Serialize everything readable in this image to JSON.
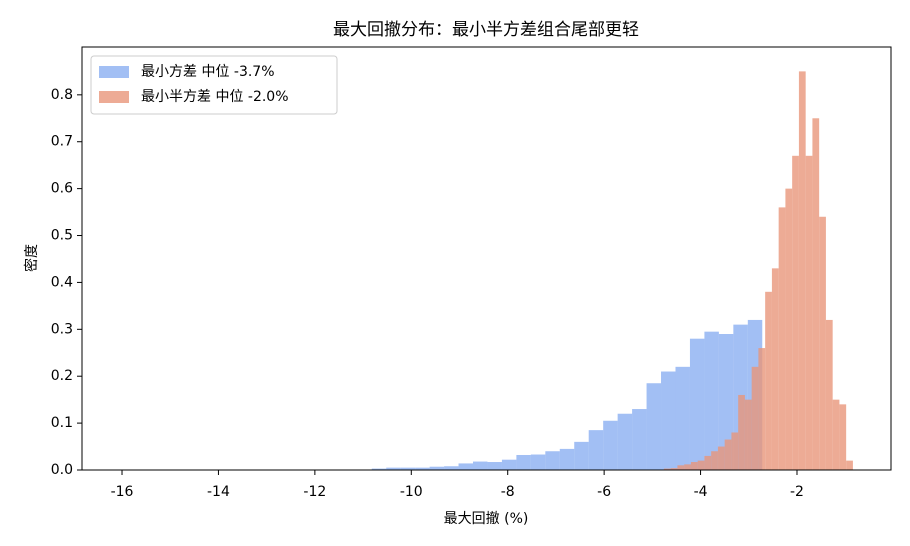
{
  "chart_data": {
    "type": "histogram",
    "title": "最大回撤分布：最小半方差组合尾部更轻",
    "x_label": "最大回撤 (%)",
    "y_label": "密度",
    "xlim": [
      -16.83,
      -0.05
    ],
    "ylim": [
      0,
      0.902
    ],
    "xticks": [
      -16,
      -14,
      -12,
      -10,
      -8,
      -6,
      -4,
      -2
    ],
    "yticks": [
      {
        "value": 0,
        "label": "0.0"
      },
      0.1,
      0.2,
      0.3,
      0.4,
      0.5,
      0.6,
      0.7,
      0.8
    ],
    "legend": "upper left",
    "series": [
      {
        "name": "最小方差 中位 -3.7%",
        "color": "#6495ed",
        "opacity": 0.6,
        "bins": [
          -16.52,
          -16.22,
          -15.92,
          -15.62,
          -15.32,
          -15.02,
          -14.72,
          -14.42,
          -14.12,
          -13.82,
          -13.52,
          -13.22,
          -12.92,
          -12.62,
          -12.32,
          -12.02,
          -11.72,
          -11.42,
          -11.12,
          -10.82,
          -10.52,
          -10.22,
          -9.92,
          -9.62,
          -9.32,
          -9.02,
          -8.72,
          -8.42,
          -8.12,
          -7.82,
          -7.52,
          -7.22,
          -6.92,
          -6.62,
          -6.32,
          -6.02,
          -5.72,
          -5.42,
          -5.12,
          -4.82,
          -4.52,
          -4.22,
          -3.92,
          -3.62,
          -3.32,
          -3.02,
          -2.72
        ],
        "values": [
          0.0005,
          0,
          0,
          0,
          0,
          0,
          0,
          0,
          0,
          0,
          0,
          0,
          0.0005,
          0.0005,
          0.001,
          0.001,
          0.001,
          0.001,
          0.001,
          0.003,
          0.005,
          0.005,
          0.005,
          0.007,
          0.008,
          0.014,
          0.018,
          0.017,
          0.022,
          0.032,
          0.033,
          0.04,
          0.045,
          0.06,
          0.085,
          0.105,
          0.12,
          0.13,
          0.185,
          0.21,
          0.22,
          0.28,
          0.295,
          0.29,
          0.31,
          0.32
        ]
      },
      {
        "name": "最小半方差 中位 -2.0%",
        "color": "#e9967a",
        "opacity": 0.8,
        "bins": [
          -5.04,
          -4.9,
          -4.76,
          -4.62,
          -4.48,
          -4.34,
          -4.2,
          -4.06,
          -3.92,
          -3.78,
          -3.64,
          -3.5,
          -3.36,
          -3.22,
          -3.08,
          -2.94,
          -2.8,
          -2.66,
          -2.52,
          -2.38,
          -2.24,
          -2.1,
          -1.96,
          -1.82,
          -1.68,
          -1.54,
          -1.4,
          -1.26,
          -1.12,
          -0.98,
          -0.84
        ],
        "values": [
          0.001,
          0.001,
          0.003,
          0.004,
          0.01,
          0.012,
          0.017,
          0.02,
          0.03,
          0.04,
          0.05,
          0.065,
          0.08,
          0.16,
          0.15,
          0.22,
          0.26,
          0.38,
          0.43,
          0.56,
          0.6,
          0.67,
          0.85,
          0.67,
          0.75,
          0.54,
          0.32,
          0.15,
          0.14,
          0.02
        ]
      }
    ]
  }
}
